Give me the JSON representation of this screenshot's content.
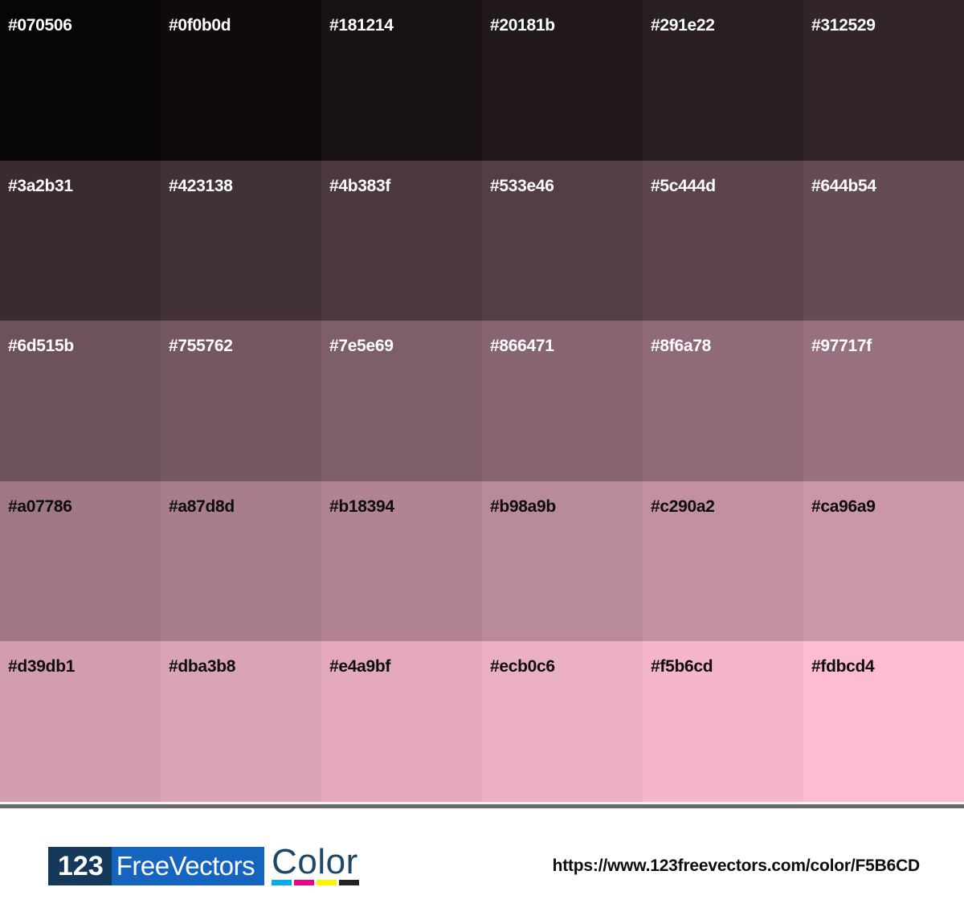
{
  "palette": {
    "columns": 6,
    "rows": 5,
    "swatches": [
      {
        "hex": "#070506",
        "label": "#070506",
        "text_color": "#ffffff"
      },
      {
        "hex": "#0f0b0d",
        "label": "#0f0b0d",
        "text_color": "#ffffff"
      },
      {
        "hex": "#181214",
        "label": "#181214",
        "text_color": "#ffffff"
      },
      {
        "hex": "#20181b",
        "label": "#20181b",
        "text_color": "#ffffff"
      },
      {
        "hex": "#291e22",
        "label": "#291e22",
        "text_color": "#ffffff"
      },
      {
        "hex": "#312529",
        "label": "#312529",
        "text_color": "#ffffff"
      },
      {
        "hex": "#3a2b31",
        "label": "#3a2b31",
        "text_color": "#ffffff"
      },
      {
        "hex": "#423138",
        "label": "#423138",
        "text_color": "#ffffff"
      },
      {
        "hex": "#4b383f",
        "label": "#4b383f",
        "text_color": "#ffffff"
      },
      {
        "hex": "#533e46",
        "label": "#533e46",
        "text_color": "#ffffff"
      },
      {
        "hex": "#5c444d",
        "label": "#5c444d",
        "text_color": "#ffffff"
      },
      {
        "hex": "#644b54",
        "label": "#644b54",
        "text_color": "#ffffff"
      },
      {
        "hex": "#6d515b",
        "label": "#6d515b",
        "text_color": "#ffffff"
      },
      {
        "hex": "#755762",
        "label": "#755762",
        "text_color": "#ffffff"
      },
      {
        "hex": "#7e5e69",
        "label": "#7e5e69",
        "text_color": "#ffffff"
      },
      {
        "hex": "#866471",
        "label": "#866471",
        "text_color": "#ffffff"
      },
      {
        "hex": "#8f6a78",
        "label": "#8f6a78",
        "text_color": "#ffffff"
      },
      {
        "hex": "#97717f",
        "label": "#97717f",
        "text_color": "#ffffff"
      },
      {
        "hex": "#a07786",
        "label": "#a07786",
        "text_color": "#0d0d0d"
      },
      {
        "hex": "#a87d8d",
        "label": "#a87d8d",
        "text_color": "#0d0d0d"
      },
      {
        "hex": "#b18394",
        "label": "#b18394",
        "text_color": "#0d0d0d"
      },
      {
        "hex": "#b98a9b",
        "label": "#b98a9b",
        "text_color": "#0d0d0d"
      },
      {
        "hex": "#c290a2",
        "label": "#c290a2",
        "text_color": "#0d0d0d"
      },
      {
        "hex": "#ca96a9",
        "label": "#ca96a9",
        "text_color": "#0d0d0d"
      },
      {
        "hex": "#d39db1",
        "label": "#d39db1",
        "text_color": "#0d0d0d"
      },
      {
        "hex": "#dba3b8",
        "label": "#dba3b8",
        "text_color": "#0d0d0d"
      },
      {
        "hex": "#e4a9bf",
        "label": "#e4a9bf",
        "text_color": "#0d0d0d"
      },
      {
        "hex": "#ecb0c6",
        "label": "#ecb0c6",
        "text_color": "#0d0d0d"
      },
      {
        "hex": "#f5b6cd",
        "label": "#f5b6cd",
        "text_color": "#0d0d0d"
      },
      {
        "hex": "#fdbcd4",
        "label": "#fdbcd4",
        "text_color": "#0d0d0d"
      }
    ]
  },
  "footer": {
    "logo": {
      "part1": "123",
      "part2": "FreeVectors",
      "part3": "Color",
      "navy_bg": "#14395b",
      "blue_bg": "#1565c0",
      "color_text_color": "#1c4766"
    },
    "cmyk_bars": [
      {
        "name": "cyan-bar",
        "color": "#00aeef"
      },
      {
        "name": "magenta-bar",
        "color": "#ec008c"
      },
      {
        "name": "yellow-bar",
        "color": "#fff200"
      },
      {
        "name": "black-bar",
        "color": "#262223"
      }
    ],
    "url": "https://www.123freevectors.com/color/F5B6CD"
  }
}
